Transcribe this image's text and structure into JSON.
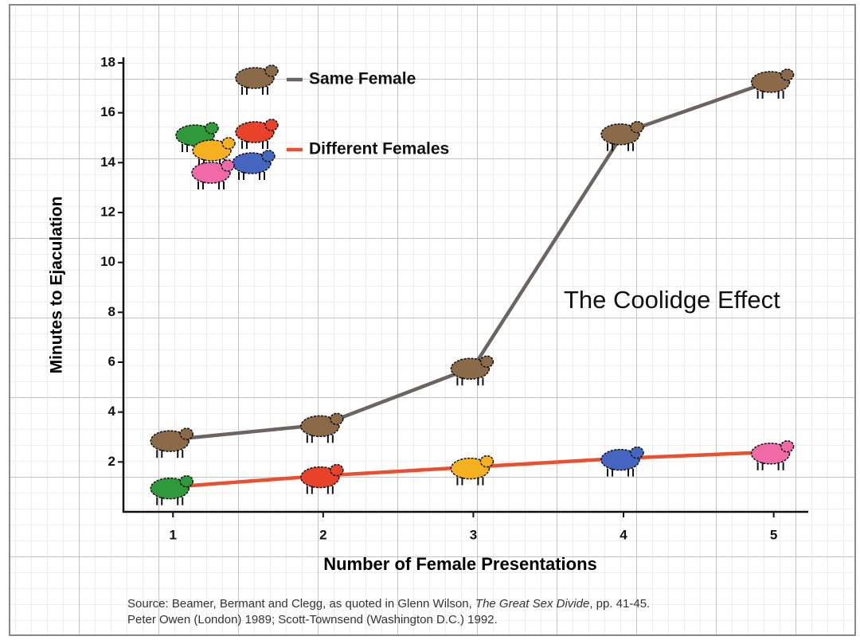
{
  "chart_data": {
    "type": "line",
    "xlabel": "Number of Female Presentations",
    "ylabel": "Minutes to Ejaculation",
    "annotation": "The Coolidge Effect",
    "source": {
      "before": "Source: Beamer, Bermant and Clegg, as quoted in Glenn Wilson, ",
      "title": "The Great Sex Divide",
      "after": ", pp. 41-45.",
      "line2": "Peter Owen (London) 1989; Scott-Townsend (Washington D.C.) 1992."
    },
    "x": [
      1,
      2,
      3,
      4,
      5
    ],
    "series": [
      {
        "name": "Same Female",
        "color": "#6b6461",
        "marker_colors": [
          "#8a6a48",
          "#8a6a48",
          "#8a6a48",
          "#8a6a48",
          "#8a6a48"
        ],
        "values": [
          2.9,
          3.5,
          5.8,
          15.2,
          17.3
        ]
      },
      {
        "name": "Different Females",
        "color": "#e8502f",
        "marker_colors": [
          "#2e9a3a",
          "#e8432a",
          "#f5b120",
          "#4466c0",
          "#f06aa8"
        ],
        "values": [
          1.0,
          1.45,
          1.8,
          2.15,
          2.4
        ]
      }
    ],
    "xlim": [
      0.67,
      5.23
    ],
    "xticks": [
      1,
      2,
      3,
      4,
      5
    ],
    "ylim": [
      0,
      18
    ],
    "yticks": [
      2,
      4,
      6,
      8,
      10,
      12,
      14,
      16,
      18
    ]
  }
}
